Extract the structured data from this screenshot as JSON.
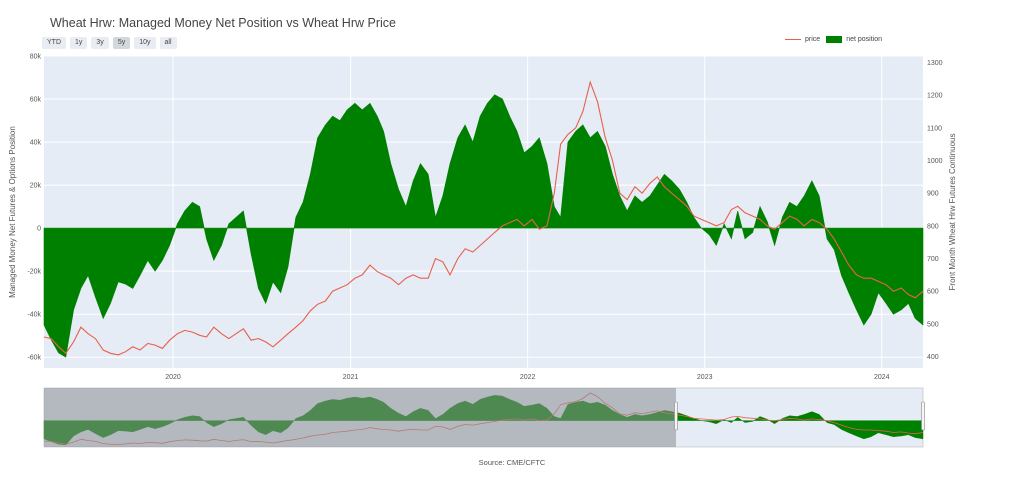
{
  "title": "Wheat Hrw: Managed Money Net Position vs Wheat Hrw Price",
  "range_buttons": [
    "YTD",
    "1y",
    "3y",
    "5y",
    "10y",
    "all"
  ],
  "active_range": "5y",
  "legend": {
    "price": "price",
    "net_position": "net position"
  },
  "source": "Source: CME/CFTC",
  "colors": {
    "price": "#e8604c",
    "net_position": "#008000",
    "plot_bg": "#e5ecf6",
    "navigator_mask": "#8c8f94"
  },
  "chart_data": {
    "type": "area",
    "title": "Wheat Hrw: Managed Money Net Position vs Wheat Hrw Price",
    "x_axis": {
      "type": "date",
      "range": [
        "2019-04-10",
        "2024-03-26"
      ],
      "tick_labels": [
        "2020",
        "2021",
        "2022",
        "2023",
        "2024"
      ]
    },
    "y_left": {
      "label": "Managed Money Net Futures & Options Position",
      "range": [
        -65000,
        80000
      ],
      "tick_values": [
        -60000,
        -40000,
        -20000,
        0,
        20000,
        40000,
        60000,
        80000
      ],
      "tick_labels": [
        "-60k",
        "-40k",
        "-20k",
        "0",
        "20k",
        "40k",
        "60k",
        "80k"
      ]
    },
    "y_right": {
      "label": "Front Month Wheat Hrw Futures Continuous",
      "range": [
        365,
        1320
      ],
      "tick_values": [
        400,
        500,
        600,
        700,
        800,
        900,
        1000,
        1100,
        1200,
        1300
      ],
      "tick_labels": [
        "400",
        "500",
        "600",
        "700",
        "800",
        "900",
        "1000",
        "1100",
        "1200",
        "1300"
      ]
    },
    "grid": true,
    "legend_position": "top-right",
    "series": [
      {
        "name": "net position",
        "style": "filled-area",
        "axis": "left",
        "x": [
          "2019-04-10",
          "2019-04-25",
          "2019-05-10",
          "2019-05-25",
          "2019-06-10",
          "2019-06-25",
          "2019-07-10",
          "2019-07-25",
          "2019-08-10",
          "2019-08-25",
          "2019-09-10",
          "2019-09-25",
          "2019-10-10",
          "2019-10-25",
          "2019-11-10",
          "2019-11-25",
          "2019-12-10",
          "2019-12-25",
          "2020-01-10",
          "2020-01-25",
          "2020-02-10",
          "2020-02-25",
          "2020-03-10",
          "2020-03-25",
          "2020-04-10",
          "2020-04-25",
          "2020-05-10",
          "2020-05-25",
          "2020-06-10",
          "2020-06-25",
          "2020-07-10",
          "2020-07-25",
          "2020-08-10",
          "2020-08-25",
          "2020-09-10",
          "2020-09-25",
          "2020-10-10",
          "2020-10-25",
          "2020-11-10",
          "2020-11-25",
          "2020-12-10",
          "2020-12-25",
          "2021-01-10",
          "2021-01-25",
          "2021-02-10",
          "2021-02-25",
          "2021-03-10",
          "2021-03-25",
          "2021-04-10",
          "2021-04-25",
          "2021-05-10",
          "2021-05-25",
          "2021-06-10",
          "2021-06-25",
          "2021-07-10",
          "2021-07-25",
          "2021-08-10",
          "2021-08-25",
          "2021-09-10",
          "2021-09-25",
          "2021-10-10",
          "2021-10-25",
          "2021-11-10",
          "2021-11-25",
          "2021-12-10",
          "2021-12-25",
          "2022-01-10",
          "2022-01-25",
          "2022-02-10",
          "2022-02-25",
          "2022-03-10",
          "2022-03-25",
          "2022-04-10",
          "2022-04-25",
          "2022-05-10",
          "2022-05-25",
          "2022-06-10",
          "2022-06-25",
          "2022-07-10",
          "2022-07-25",
          "2022-08-10",
          "2022-08-25",
          "2022-09-10",
          "2022-09-25",
          "2022-10-10",
          "2022-10-25",
          "2022-11-10",
          "2022-11-25",
          "2022-12-10",
          "2022-12-25",
          "2023-01-10",
          "2023-01-25",
          "2023-02-10",
          "2023-02-25",
          "2023-03-10",
          "2023-03-25",
          "2023-04-10",
          "2023-04-25",
          "2023-05-10",
          "2023-05-25",
          "2023-06-10",
          "2023-06-25",
          "2023-07-10",
          "2023-07-25",
          "2023-08-10",
          "2023-08-25",
          "2023-09-10",
          "2023-09-25",
          "2023-10-10",
          "2023-10-25",
          "2023-11-10",
          "2023-11-25",
          "2023-12-10",
          "2023-12-25",
          "2024-01-10",
          "2024-01-25",
          "2024-02-10",
          "2024-02-25",
          "2024-03-10",
          "2024-03-26"
        ],
        "values": [
          -45000,
          -52000,
          -58000,
          -60000,
          -38000,
          -28000,
          -22000,
          -32000,
          -42000,
          -35000,
          -25000,
          -26000,
          -28000,
          -22000,
          -15000,
          -20000,
          -15000,
          -8000,
          2000,
          8000,
          12000,
          10000,
          -5000,
          -15000,
          -8000,
          2000,
          5000,
          8000,
          -12000,
          -28000,
          -35000,
          -25000,
          -30000,
          -18000,
          5000,
          12000,
          25000,
          42000,
          48000,
          52000,
          50000,
          55000,
          58000,
          55000,
          58000,
          52000,
          45000,
          30000,
          18000,
          10000,
          22000,
          30000,
          25000,
          5000,
          15000,
          30000,
          42000,
          48000,
          40000,
          52000,
          58000,
          62000,
          60000,
          52000,
          45000,
          35000,
          38000,
          42000,
          30000,
          10000,
          5000,
          40000,
          45000,
          48000,
          42000,
          45000,
          38000,
          25000,
          15000,
          8000,
          15000,
          12000,
          15000,
          20000,
          25000,
          22000,
          18000,
          12000,
          5000,
          0,
          -3000,
          -8000,
          2000,
          -5000,
          8000,
          -5000,
          -2000,
          10000,
          3000,
          -8000,
          5000,
          12000,
          10000,
          15000,
          22000,
          15000,
          -5000,
          -10000,
          -22000,
          -30000,
          -38000,
          -45000,
          -40000,
          -30000,
          -35000,
          -40000,
          -38000,
          -35000,
          -42000,
          -45000
        ]
      },
      {
        "name": "price",
        "style": "line",
        "axis": "right",
        "x": [
          "2019-04-10",
          "2019-04-25",
          "2019-05-10",
          "2019-05-25",
          "2019-06-10",
          "2019-06-25",
          "2019-07-10",
          "2019-07-25",
          "2019-08-10",
          "2019-08-25",
          "2019-09-10",
          "2019-09-25",
          "2019-10-10",
          "2019-10-25",
          "2019-11-10",
          "2019-11-25",
          "2019-12-10",
          "2019-12-25",
          "2020-01-10",
          "2020-01-25",
          "2020-02-10",
          "2020-02-25",
          "2020-03-10",
          "2020-03-25",
          "2020-04-10",
          "2020-04-25",
          "2020-05-10",
          "2020-05-25",
          "2020-06-10",
          "2020-06-25",
          "2020-07-10",
          "2020-07-25",
          "2020-08-10",
          "2020-08-25",
          "2020-09-10",
          "2020-09-25",
          "2020-10-10",
          "2020-10-25",
          "2020-11-10",
          "2020-11-25",
          "2020-12-10",
          "2020-12-25",
          "2021-01-10",
          "2021-01-25",
          "2021-02-10",
          "2021-02-25",
          "2021-03-10",
          "2021-03-25",
          "2021-04-10",
          "2021-04-25",
          "2021-05-10",
          "2021-05-25",
          "2021-06-10",
          "2021-06-25",
          "2021-07-10",
          "2021-07-25",
          "2021-08-10",
          "2021-08-25",
          "2021-09-10",
          "2021-09-25",
          "2021-10-10",
          "2021-10-25",
          "2021-11-10",
          "2021-11-25",
          "2021-12-10",
          "2021-12-25",
          "2022-01-10",
          "2022-01-25",
          "2022-02-10",
          "2022-02-25",
          "2022-03-10",
          "2022-03-25",
          "2022-04-10",
          "2022-04-25",
          "2022-05-10",
          "2022-05-25",
          "2022-06-10",
          "2022-06-25",
          "2022-07-10",
          "2022-07-25",
          "2022-08-10",
          "2022-08-25",
          "2022-09-10",
          "2022-09-25",
          "2022-10-10",
          "2022-10-25",
          "2022-11-10",
          "2022-11-25",
          "2022-12-10",
          "2022-12-25",
          "2023-01-10",
          "2023-01-25",
          "2023-02-10",
          "2023-02-25",
          "2023-03-10",
          "2023-03-25",
          "2023-04-10",
          "2023-04-25",
          "2023-05-10",
          "2023-05-25",
          "2023-06-10",
          "2023-06-25",
          "2023-07-10",
          "2023-07-25",
          "2023-08-10",
          "2023-08-25",
          "2023-09-10",
          "2023-09-25",
          "2023-10-10",
          "2023-10-25",
          "2023-11-10",
          "2023-11-25",
          "2023-12-10",
          "2023-12-25",
          "2024-01-10",
          "2024-01-25",
          "2024-02-10",
          "2024-02-25",
          "2024-03-10",
          "2024-03-26"
        ],
        "values": [
          460,
          455,
          430,
          410,
          445,
          490,
          470,
          455,
          420,
          410,
          405,
          415,
          430,
          420,
          440,
          435,
          425,
          450,
          470,
          480,
          475,
          465,
          460,
          490,
          470,
          455,
          470,
          485,
          450,
          455,
          445,
          430,
          450,
          470,
          490,
          510,
          540,
          560,
          570,
          600,
          610,
          620,
          640,
          650,
          680,
          660,
          650,
          640,
          620,
          640,
          650,
          640,
          640,
          700,
          690,
          650,
          700,
          730,
          720,
          740,
          760,
          780,
          800,
          810,
          820,
          800,
          820,
          790,
          800,
          900,
          1050,
          1080,
          1100,
          1150,
          1240,
          1180,
          1070,
          1000,
          900,
          880,
          920,
          900,
          930,
          950,
          920,
          900,
          880,
          860,
          830,
          820,
          810,
          800,
          810,
          850,
          860,
          840,
          830,
          820,
          800,
          790,
          810,
          830,
          820,
          800,
          820,
          810,
          790,
          760,
          720,
          680,
          650,
          640,
          640,
          630,
          620,
          600,
          610,
          590,
          580,
          600
        ]
      }
    ]
  }
}
